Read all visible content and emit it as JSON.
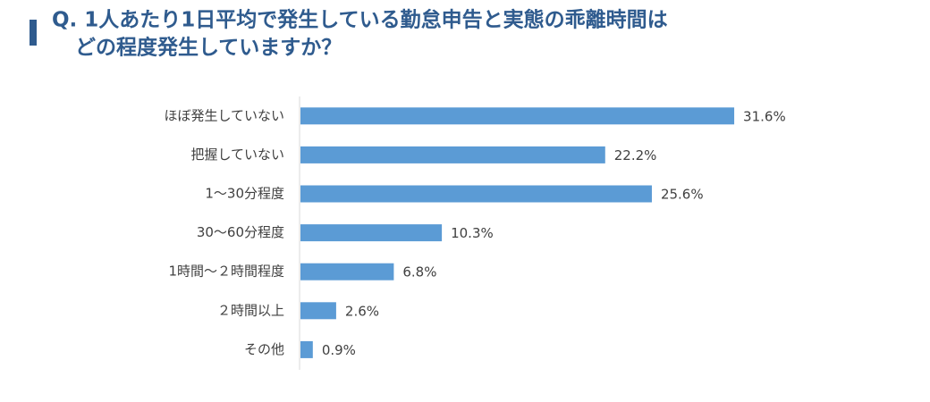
{
  "chart_data": {
    "type": "bar",
    "orientation": "horizontal",
    "title": [
      "Q. 1人あたり1日平均で発生している勤怠申告と実態の乖離時間は",
      "どの程度発生していますか？"
    ],
    "categories": [
      "ほぼ発生していない",
      "把握していない",
      "1〜30分程度",
      "30〜60分程度",
      "1時間〜２時間程度",
      "２時間以上",
      "その他"
    ],
    "values": [
      31.6,
      22.2,
      25.6,
      10.3,
      6.8,
      2.6,
      0.9
    ],
    "value_labels": [
      "31.6%",
      "22.2%",
      "25.6%",
      "10.3%",
      "6.8%",
      "2.6%",
      "0.9%"
    ],
    "color": "#5b9bd5"
  }
}
